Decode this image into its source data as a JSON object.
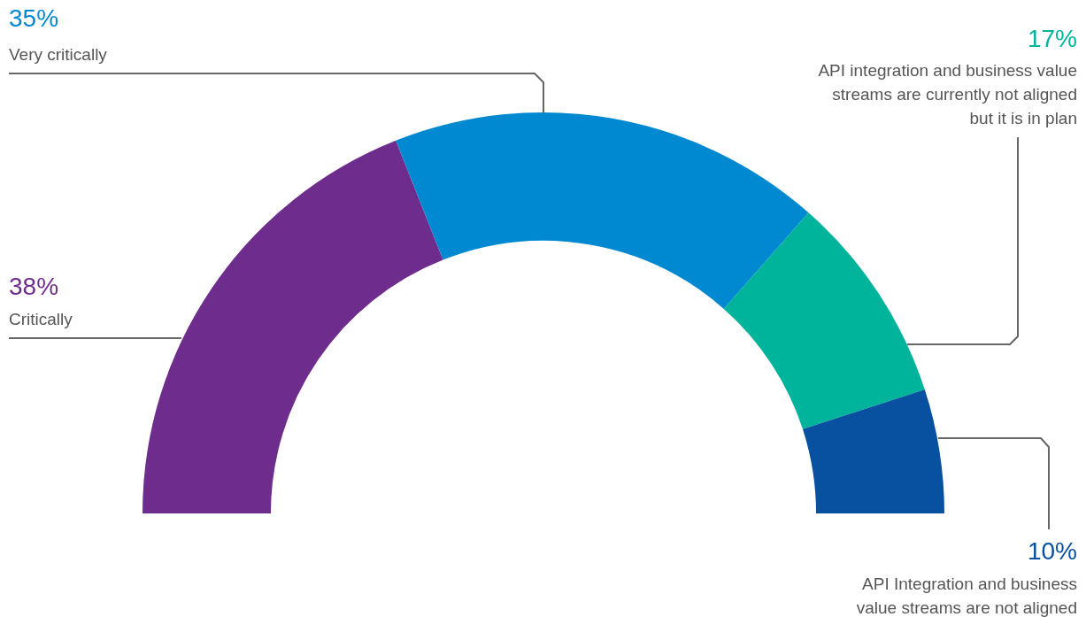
{
  "chart_data": {
    "type": "donut",
    "categories": [
      "Critically",
      "Very critically",
      "API integration and business value streams are currently not aligned but it is in plan",
      "API Integration and business value streams are not aligned"
    ],
    "values": [
      38,
      35,
      17,
      10
    ],
    "colors": [
      "#6e2c8c",
      "#0088d1",
      "#00b39b",
      "#0850a0"
    ],
    "value_labels": [
      "38%",
      "35%",
      "17%",
      "10%"
    ]
  }
}
